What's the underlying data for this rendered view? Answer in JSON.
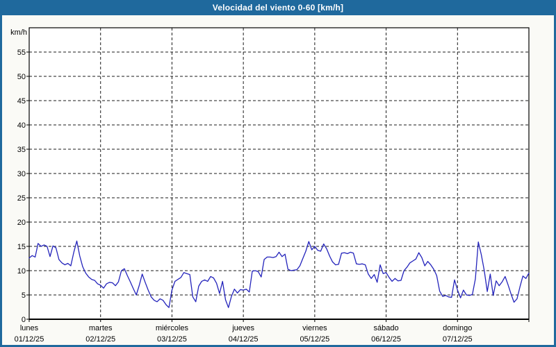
{
  "header": {
    "title": "Velocidad del viento 0-60 [km/h]"
  },
  "colors": {
    "accent": "#1f699d",
    "canvas_bg": "#fafaf6",
    "plot_bg": "#ffffff",
    "grid": "#1a1a1a",
    "line": "#2323bb",
    "title_text": "#ffffff"
  },
  "chart_data": {
    "type": "line",
    "title": "Velocidad del viento 0-60 [km/h]",
    "ylabel": "km/h",
    "xlabel": "",
    "ylim": [
      0,
      60
    ],
    "ytick_step": 5,
    "ytick_labels": [
      "0",
      "5",
      "10",
      "15",
      "20",
      "25",
      "30",
      "35",
      "40",
      "45",
      "50",
      "55"
    ],
    "grid": "dashed",
    "legend": "none",
    "points_per_day": 24,
    "x_axis": {
      "days": [
        {
          "name": "lunes",
          "date": "01/12/25"
        },
        {
          "name": "martes",
          "date": "02/12/25"
        },
        {
          "name": "miércoles",
          "date": "03/12/25"
        },
        {
          "name": "jueves",
          "date": "04/12/25"
        },
        {
          "name": "viernes",
          "date": "05/12/25"
        },
        {
          "name": "sábado",
          "date": "06/12/25"
        },
        {
          "name": "domingo",
          "date": "07/12/25"
        }
      ]
    },
    "series": [
      {
        "name": "Velocidad del viento",
        "unit": "km/h",
        "color": "#2323bb",
        "values": [
          12.6,
          13.1,
          12.8,
          15.6,
          15.0,
          15.3,
          15.0,
          12.9,
          15.1,
          14.7,
          12.3,
          11.6,
          11.2,
          11.5,
          11.0,
          13.8,
          16.1,
          13.0,
          10.8,
          9.5,
          8.7,
          8.2,
          8.0,
          7.3,
          7.0,
          6.4,
          7.3,
          7.6,
          7.5,
          6.9,
          7.7,
          10.0,
          10.4,
          9.0,
          7.7,
          6.3,
          5.0,
          7.0,
          9.3,
          7.6,
          6.0,
          4.6,
          3.9,
          3.6,
          4.2,
          3.9,
          3.0,
          2.4,
          6.0,
          7.8,
          8.2,
          8.6,
          9.6,
          9.4,
          9.2,
          4.6,
          3.6,
          6.8,
          7.8,
          8.1,
          7.8,
          8.8,
          8.5,
          7.4,
          5.3,
          7.8,
          4.0,
          2.4,
          4.7,
          6.2,
          5.4,
          6.1,
          6.0,
          6.2,
          5.6,
          9.9,
          10.0,
          9.8,
          8.7,
          12.3,
          12.8,
          12.8,
          12.7,
          12.9,
          13.8,
          12.9,
          13.4,
          10.3,
          10.0,
          10.1,
          10.2,
          11.0,
          12.5,
          14.0,
          16.0,
          14.3,
          15.0,
          14.2,
          14.0,
          15.5,
          14.5,
          13.0,
          11.8,
          11.2,
          11.3,
          13.6,
          13.7,
          13.5,
          13.8,
          13.6,
          11.4,
          11.3,
          11.4,
          11.2,
          9.3,
          8.4,
          9.2,
          7.6,
          11.2,
          9.4,
          9.6,
          8.6,
          7.8,
          8.4,
          7.9,
          8.0,
          10.0,
          10.7,
          11.6,
          12.0,
          12.4,
          13.7,
          12.7,
          11.0,
          11.9,
          11.2,
          10.3,
          9.0,
          5.8,
          4.7,
          4.9,
          4.6,
          4.5,
          8.1,
          6.0,
          4.4,
          6.0,
          5.0,
          4.9,
          5.1,
          8.3,
          15.9,
          13.3,
          10.0,
          5.7,
          9.3,
          4.9,
          7.9,
          6.9,
          7.7,
          8.8,
          7.1,
          5.2,
          3.5,
          4.2,
          6.7,
          8.9,
          8.4,
          9.5
        ]
      }
    ]
  }
}
